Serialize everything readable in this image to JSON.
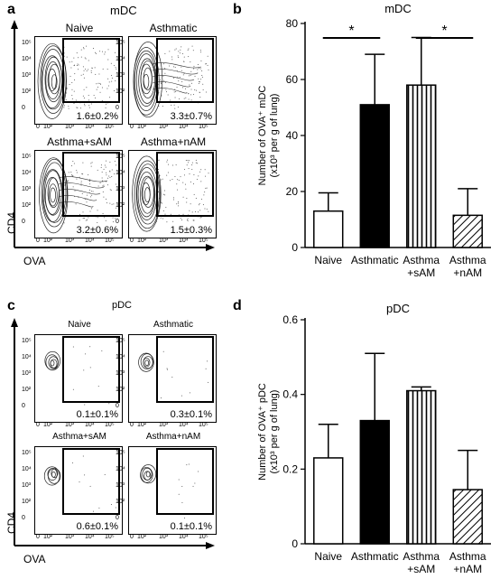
{
  "panels": {
    "a": {
      "letter": "a",
      "title": "mDC",
      "plots": [
        {
          "label": "Naive",
          "stat": "1.6±0.2%"
        },
        {
          "label": "Asthmatic",
          "stat": "3.3±0.7%"
        },
        {
          "label": "Asthma+sAM",
          "stat": "3.2±0.6%"
        },
        {
          "label": "Asthma+nAM",
          "stat": "1.5±0.3%"
        }
      ],
      "ylabel": "CD4",
      "xlabel": "OVA"
    },
    "c": {
      "letter": "c",
      "title": "pDC",
      "plots": [
        {
          "label": "Naive",
          "stat": "0.1±0.1%"
        },
        {
          "label": "Asthmatic",
          "stat": "0.3±0.1%"
        },
        {
          "label": "Asthma+sAM",
          "stat": "0.6±0.1%"
        },
        {
          "label": "Asthma+nAM",
          "stat": "0.1±0.1%"
        }
      ],
      "ylabel": "CD4",
      "xlabel": "OVA"
    },
    "b": {
      "letter": "b"
    },
    "d": {
      "letter": "d"
    }
  },
  "flow_ticks": {
    "y": [
      "10⁵",
      "10⁴",
      "10³",
      "10²",
      "0"
    ],
    "x": [
      "0",
      "10²",
      "10³",
      "10⁴",
      "10⁵"
    ]
  },
  "chart_data": [
    {
      "type": "bar",
      "panel": "b",
      "title": "mDC",
      "ylabel_line1": "Number of OVA⁺ mDC",
      "ylabel_line2": "(x10³ per g of lung)",
      "categories": [
        [
          "Naive"
        ],
        [
          "Asthmatic"
        ],
        [
          "Asthma",
          "+sAM"
        ],
        [
          "Asthma",
          "+nAM"
        ]
      ],
      "values": [
        13,
        51,
        58,
        11.5
      ],
      "errors": [
        6.5,
        18,
        17,
        9.5
      ],
      "fills": [
        "white",
        "black",
        "vertical-lines",
        "diagonal-lines"
      ],
      "ylim": [
        0,
        80
      ],
      "yticks": [
        "0",
        "20",
        "40",
        "60",
        "80"
      ],
      "significance": [
        {
          "from": 0,
          "to": 1,
          "label": "*"
        },
        {
          "from": 2,
          "to": 3,
          "label": "*"
        }
      ]
    },
    {
      "type": "bar",
      "panel": "d",
      "title": "pDC",
      "ylabel_line1": "Number of OVA⁺ pDC",
      "ylabel_line2": "(x10³ per g of lung)",
      "categories": [
        [
          "Naive"
        ],
        [
          "Asthmatic"
        ],
        [
          "Asthma",
          "+sAM"
        ],
        [
          "Asthma",
          "+nAM"
        ]
      ],
      "values": [
        0.23,
        0.33,
        0.41,
        0.145
      ],
      "errors": [
        0.09,
        0.18,
        0.01,
        0.105
      ],
      "fills": [
        "white",
        "black",
        "vertical-lines",
        "diagonal-lines"
      ],
      "ylim": [
        0,
        0.6
      ],
      "yticks": [
        "0",
        "0.2",
        "0.4",
        "0.6"
      ],
      "significance": []
    }
  ]
}
